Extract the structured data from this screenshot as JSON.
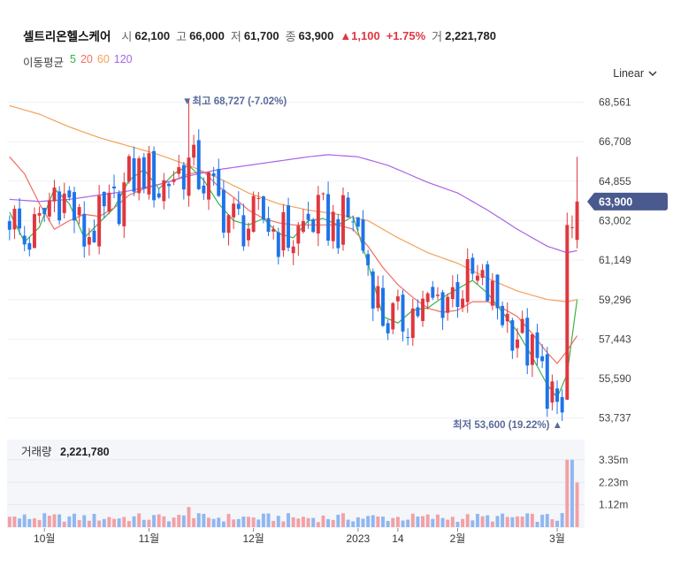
{
  "header": {
    "name": "셀트리온헬스케어",
    "open_label": "시",
    "open": "62,100",
    "high_label": "고",
    "high": "66,000",
    "low_label": "저",
    "low": "61,700",
    "close_label": "종",
    "close": "63,900",
    "change": "▲1,100",
    "change_pct": "+1.75%",
    "volume_label": "거",
    "volume": "2,221,780"
  },
  "moving_average": {
    "label": "이동평균",
    "periods": [
      "5",
      "20",
      "60",
      "120"
    ],
    "colors": [
      "#3bb24a",
      "#f06e62",
      "#f3a25a",
      "#a865e6"
    ]
  },
  "scale_selector": {
    "label": "Linear"
  },
  "colors": {
    "up": "#e0373f",
    "down": "#1e74e8",
    "price_tag": "#4a5a8e",
    "annotation": "#5a6a9a"
  },
  "chart_data": {
    "type": "candlestick",
    "title": "셀트리온헬스케어",
    "y_ticks": [
      "68,561",
      "66,708",
      "64,855",
      "63,002",
      "61,149",
      "59,296",
      "57,443",
      "55,590",
      "53,737"
    ],
    "y_tick_values": [
      68561,
      66708,
      64855,
      63002,
      61149,
      59296,
      57443,
      55590,
      53737
    ],
    "ylim": [
      53100,
      69000
    ],
    "x_labels": [
      {
        "label": "10월",
        "index": 7
      },
      {
        "label": "11월",
        "index": 28
      },
      {
        "label": "12월",
        "index": 49
      },
      {
        "label": "2023",
        "index": 70
      },
      {
        "label": "14",
        "index": 78
      },
      {
        "label": "2월",
        "index": 90
      },
      {
        "label": "3월",
        "index": 110
      }
    ],
    "current_price_label": "63,900",
    "current_price": 63900,
    "high_annotation": {
      "text": "▼최고 68,727 (-7.02%)",
      "value": 68727,
      "index": 36
    },
    "low_annotation": {
      "text": "최저 53,600 (19.22%) ▲",
      "value": 53600,
      "index": 111
    },
    "volume": {
      "label": "거래량",
      "value": "2,221,780",
      "ticks": [
        "3.35m",
        "2.23m",
        "1.12m"
      ],
      "tick_values": [
        3.35,
        2.23,
        1.12
      ],
      "max": 4.0
    },
    "series": [
      {
        "name": "MA5",
        "color": "#3bb24a",
        "values": [
          [
            0,
            63400
          ],
          [
            3,
            62000
          ],
          [
            6,
            62700
          ],
          [
            9,
            64500
          ],
          [
            12,
            63800
          ],
          [
            15,
            62200
          ],
          [
            18,
            62900
          ],
          [
            21,
            63600
          ],
          [
            24,
            64900
          ],
          [
            27,
            65400
          ],
          [
            30,
            64500
          ],
          [
            33,
            65200
          ],
          [
            36,
            65600
          ],
          [
            39,
            64900
          ],
          [
            42,
            63800
          ],
          [
            45,
            63000
          ],
          [
            48,
            62800
          ],
          [
            51,
            63100
          ],
          [
            54,
            62400
          ],
          [
            57,
            62200
          ],
          [
            60,
            63000
          ],
          [
            63,
            63100
          ],
          [
            66,
            62800
          ],
          [
            69,
            63200
          ],
          [
            72,
            61000
          ],
          [
            75,
            58500
          ],
          [
            78,
            58200
          ],
          [
            81,
            58800
          ],
          [
            84,
            58900
          ],
          [
            87,
            59400
          ],
          [
            90,
            59800
          ],
          [
            93,
            60200
          ],
          [
            96,
            59600
          ],
          [
            99,
            58700
          ],
          [
            102,
            57800
          ],
          [
            105,
            56600
          ],
          [
            108,
            55300
          ],
          [
            110,
            54700
          ],
          [
            112,
            55800
          ],
          [
            114,
            59300
          ]
        ]
      },
      {
        "name": "MA20",
        "color": "#f06e62",
        "values": [
          [
            0,
            66000
          ],
          [
            3,
            65200
          ],
          [
            6,
            63800
          ],
          [
            9,
            62600
          ],
          [
            12,
            63000
          ],
          [
            15,
            63300
          ],
          [
            18,
            63200
          ],
          [
            21,
            63600
          ],
          [
            24,
            64200
          ],
          [
            27,
            64500
          ],
          [
            30,
            64700
          ],
          [
            33,
            64900
          ],
          [
            36,
            65200
          ],
          [
            39,
            65300
          ],
          [
            42,
            64600
          ],
          [
            45,
            64100
          ],
          [
            48,
            63500
          ],
          [
            51,
            63100
          ],
          [
            54,
            62900
          ],
          [
            57,
            62800
          ],
          [
            60,
            62800
          ],
          [
            63,
            62800
          ],
          [
            66,
            62800
          ],
          [
            69,
            62600
          ],
          [
            72,
            61800
          ],
          [
            75,
            60800
          ],
          [
            78,
            60000
          ],
          [
            81,
            59400
          ],
          [
            84,
            58900
          ],
          [
            87,
            58700
          ],
          [
            90,
            58800
          ],
          [
            93,
            59200
          ],
          [
            96,
            59200
          ],
          [
            99,
            58900
          ],
          [
            102,
            58500
          ],
          [
            105,
            57700
          ],
          [
            108,
            56800
          ],
          [
            110,
            56300
          ],
          [
            112,
            56900
          ],
          [
            114,
            57600
          ]
        ]
      },
      {
        "name": "MA60",
        "color": "#f3a25a",
        "values": [
          [
            0,
            68400
          ],
          [
            6,
            68000
          ],
          [
            12,
            67400
          ],
          [
            18,
            66900
          ],
          [
            24,
            66500
          ],
          [
            30,
            66100
          ],
          [
            36,
            65600
          ],
          [
            42,
            65000
          ],
          [
            48,
            64300
          ],
          [
            54,
            63800
          ],
          [
            60,
            63500
          ],
          [
            66,
            63300
          ],
          [
            72,
            63000
          ],
          [
            78,
            62200
          ],
          [
            84,
            61500
          ],
          [
            90,
            61000
          ],
          [
            96,
            60300
          ],
          [
            102,
            59700
          ],
          [
            108,
            59300
          ],
          [
            112,
            59200
          ],
          [
            114,
            59300
          ]
        ]
      },
      {
        "name": "MA120",
        "color": "#a865e6",
        "values": [
          [
            0,
            64000
          ],
          [
            6,
            63900
          ],
          [
            12,
            64000
          ],
          [
            18,
            64200
          ],
          [
            24,
            64400
          ],
          [
            30,
            64700
          ],
          [
            36,
            65100
          ],
          [
            42,
            65400
          ],
          [
            48,
            65600
          ],
          [
            54,
            65800
          ],
          [
            60,
            66000
          ],
          [
            64,
            66100
          ],
          [
            70,
            66000
          ],
          [
            76,
            65600
          ],
          [
            84,
            64800
          ],
          [
            90,
            64300
          ],
          [
            96,
            63500
          ],
          [
            102,
            62600
          ],
          [
            108,
            61800
          ],
          [
            112,
            61500
          ],
          [
            114,
            61600
          ]
        ]
      }
    ]
  }
}
